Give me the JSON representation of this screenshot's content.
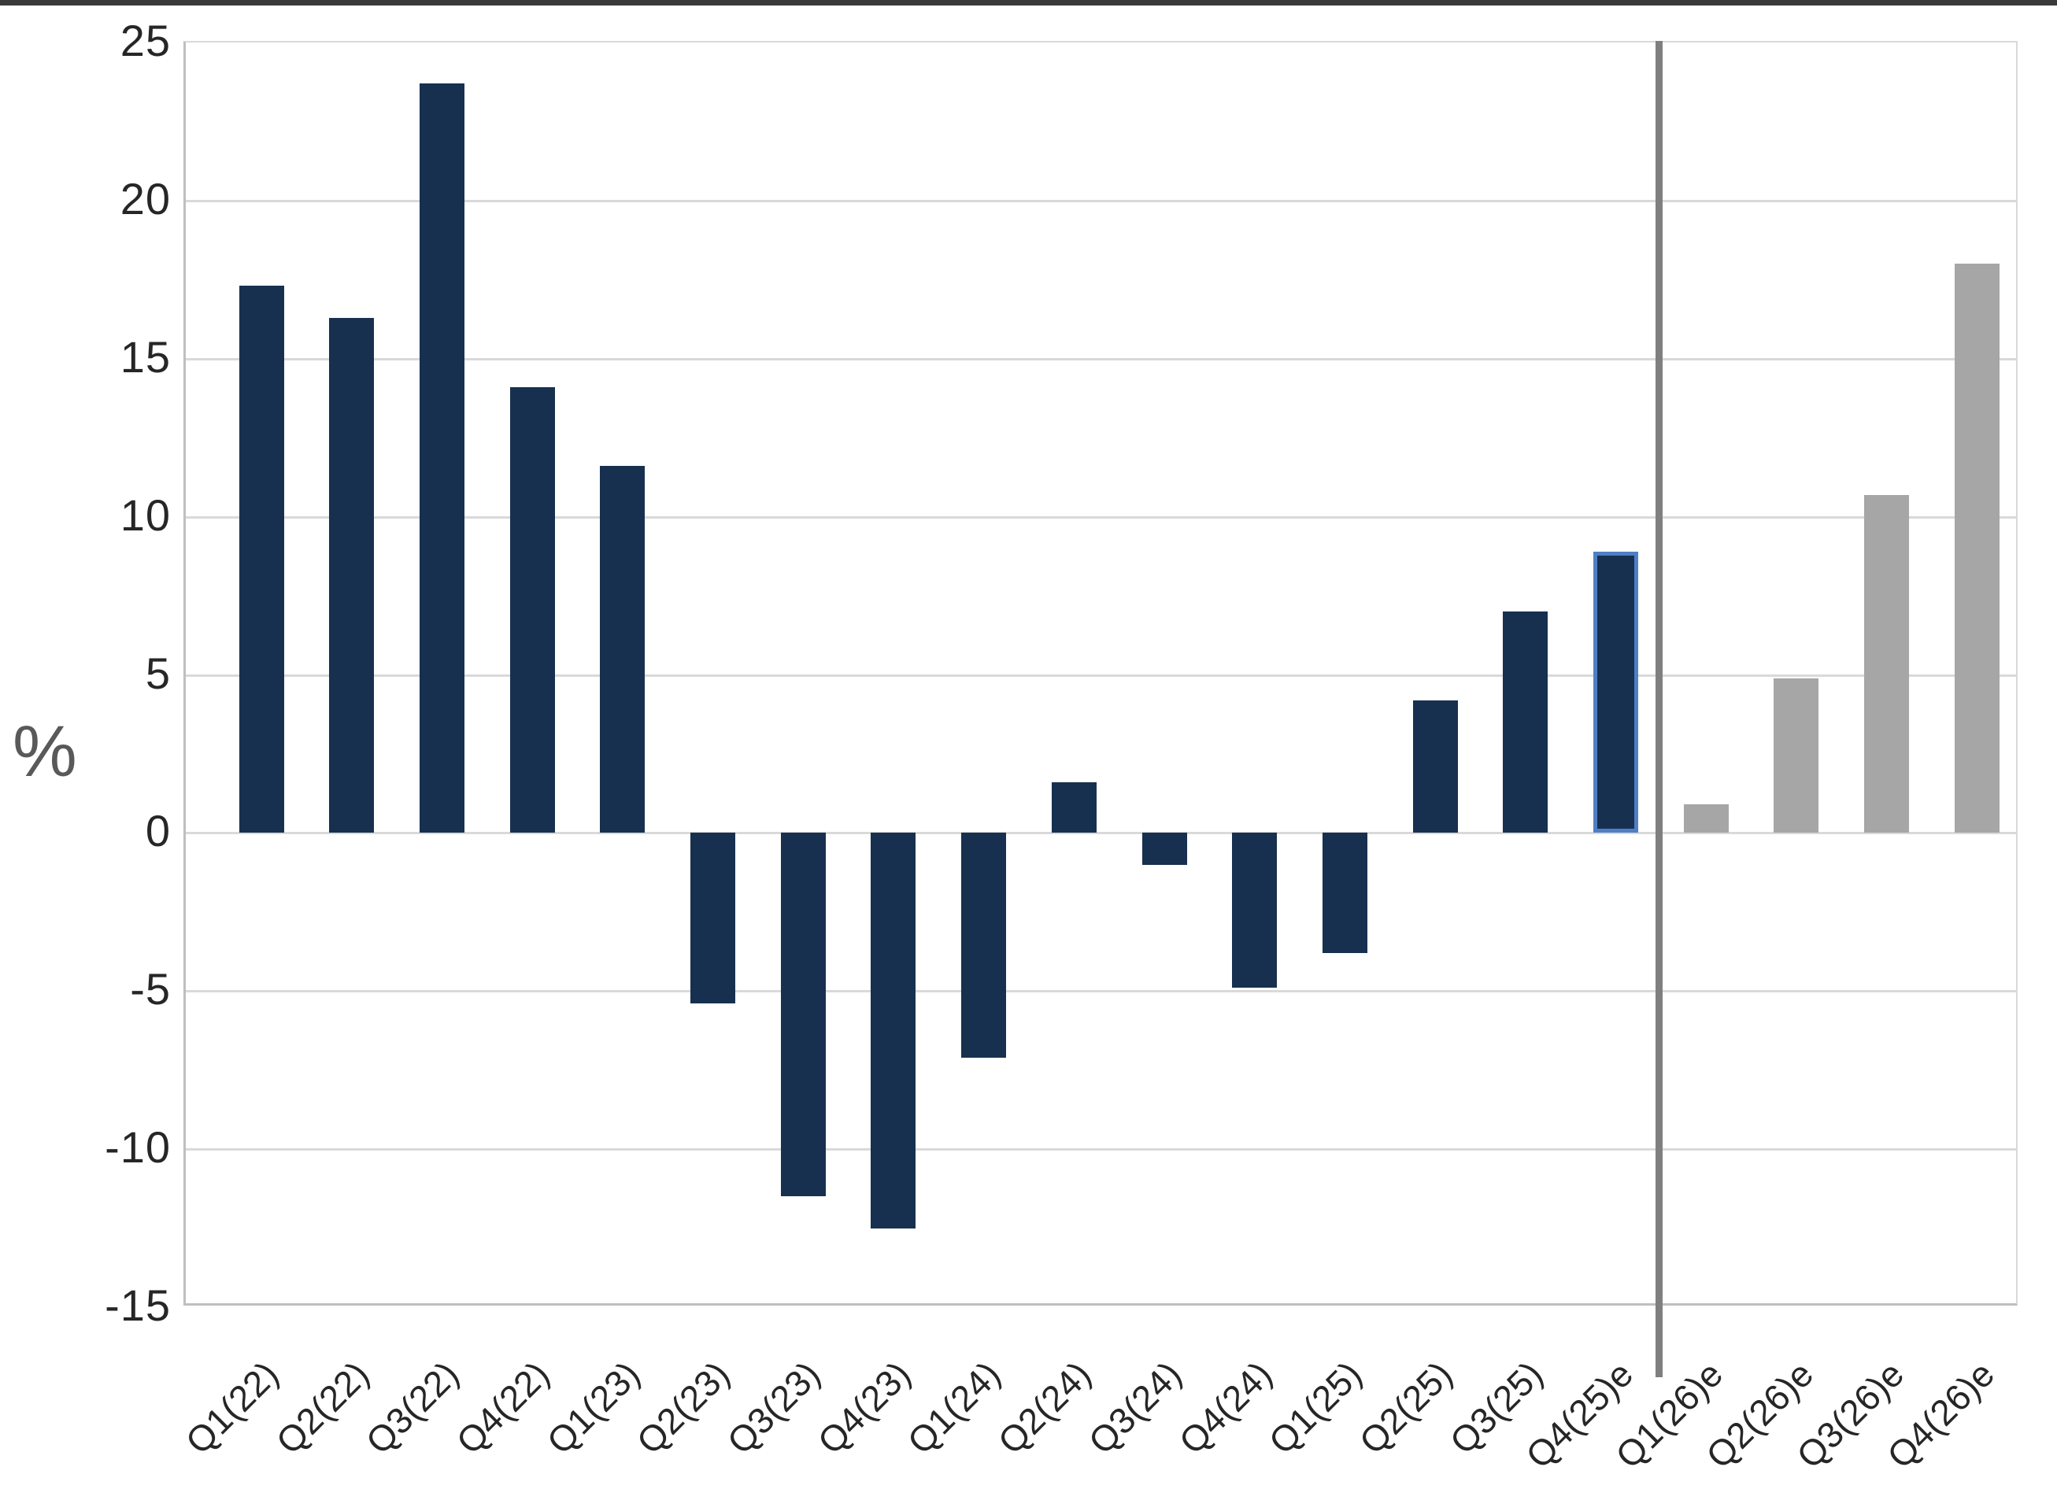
{
  "page": {
    "top_rule_color": "#3a3a3a",
    "background": "#ffffff"
  },
  "chart_data": {
    "type": "bar",
    "title": "",
    "xlabel": "",
    "ylabel": "%",
    "ylim": [
      -15,
      25
    ],
    "ytick_interval": 5,
    "yticks": [
      25,
      20,
      15,
      10,
      5,
      0,
      -5,
      -10,
      -15
    ],
    "grid": "horizontal-gridlines-on",
    "legend": "none",
    "categories": [
      "Q1(22)",
      "Q2(22)",
      "Q3(22)",
      "Q4(22)",
      "Q1(23)",
      "Q2(23)",
      "Q3(23)",
      "Q4(23)",
      "Q1(24)",
      "Q2(24)",
      "Q3(24)",
      "Q4(24)",
      "Q1(25)",
      "Q2(25)",
      "Q3(25)",
      "Q4(25)e",
      "Q1(26)e",
      "Q2(26)e",
      "Q3(26)e",
      "Q4(26)e"
    ],
    "values": [
      17.3,
      16.3,
      23.7,
      14.1,
      11.6,
      -5.4,
      -11.5,
      -12.5,
      -7.1,
      1.6,
      -1.0,
      -4.9,
      -3.8,
      4.2,
      7.0,
      8.9,
      0.9,
      4.9,
      10.7,
      18.0
    ],
    "bar_styles": [
      "actual",
      "actual",
      "actual",
      "actual",
      "actual",
      "actual",
      "actual",
      "actual",
      "actual",
      "actual",
      "actual",
      "actual",
      "actual",
      "actual",
      "actual",
      "highlight",
      "forecast",
      "forecast",
      "forecast",
      "forecast"
    ],
    "divider_after_index": 15,
    "colors": {
      "actual_bar": "#17304F",
      "forecast_bar": "#A6A6A6",
      "highlight_fill": "#17304F",
      "highlight_border": "#4E7FC4",
      "divider": "#7F7F7F",
      "gridline": "#D9D9D9",
      "axis_border": "#BFBFBF",
      "tick_label": "#262626",
      "axis_title": "#595959"
    }
  }
}
